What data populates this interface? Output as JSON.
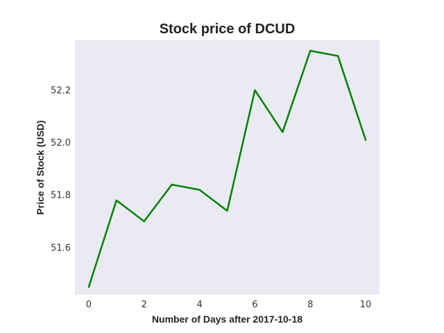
{
  "chart_data": {
    "type": "line",
    "title": "Stock price of DCUD",
    "xlabel": "Number of Days after 2017-10-18",
    "ylabel": "Price of Stock (USD)",
    "x": [
      0,
      1,
      2,
      3,
      4,
      5,
      6,
      7,
      8,
      9,
      10
    ],
    "series": [
      {
        "values": [
          51.45,
          51.78,
          51.7,
          51.84,
          51.82,
          51.74,
          52.2,
          52.04,
          52.35,
          52.33,
          52.01
        ]
      }
    ],
    "x_ticks": [
      "0",
      "2",
      "4",
      "6",
      "8",
      "10"
    ],
    "y_ticks": [
      "51.6",
      "51.8",
      "52.0",
      "52.2"
    ],
    "xlim": [
      -0.5,
      10.5
    ],
    "ylim": [
      51.42,
      52.39
    ],
    "grid": false,
    "colors": {
      "line": "#008000",
      "plot_background": "#eaeaf2"
    }
  }
}
